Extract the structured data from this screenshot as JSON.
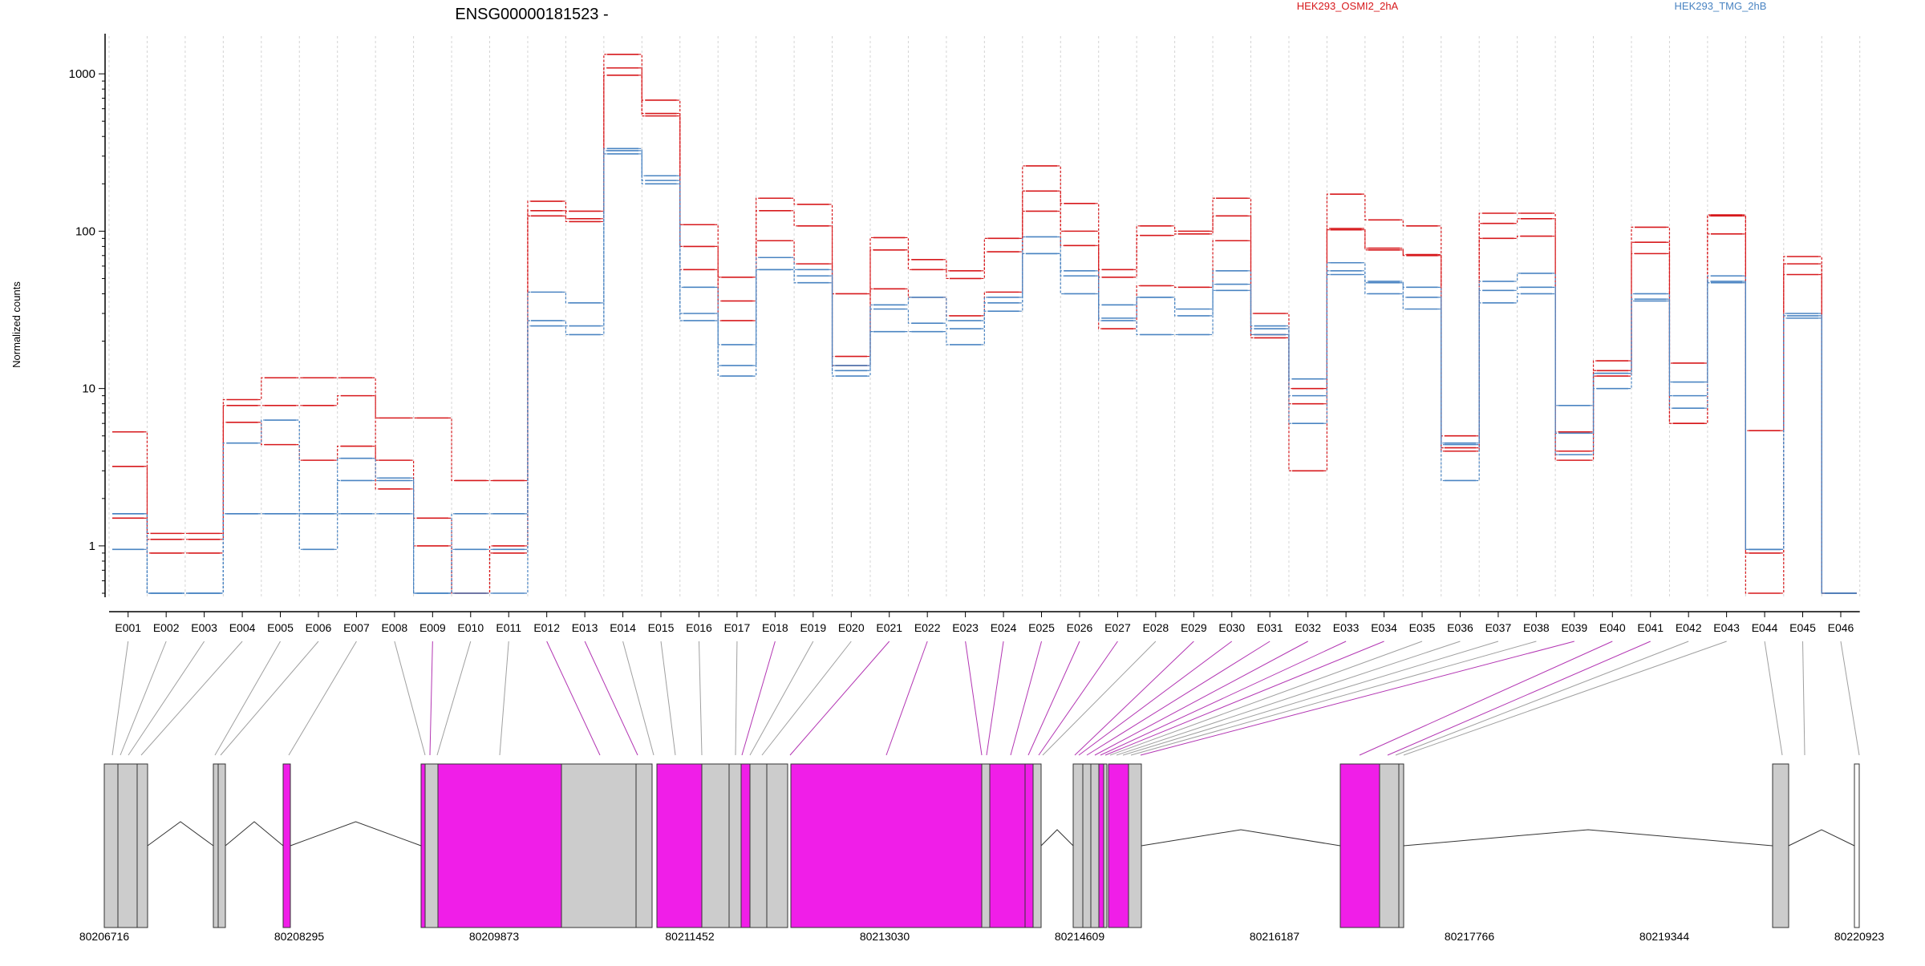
{
  "chart_data": {
    "type": "line",
    "title": "ENSG00000181523 -",
    "ylabel": "Normalized counts",
    "y_scale": "log",
    "ylim": [
      0.5,
      1800
    ],
    "y_ticks": [
      1,
      10,
      100,
      1000
    ],
    "y_tick_labels": [
      "1",
      "10",
      "100",
      "1000"
    ],
    "grid": "vertical dashed lines at exon boundaries",
    "legend_placement": "top-right",
    "categories": [
      "E001",
      "E002",
      "E003",
      "E004",
      "E005",
      "E006",
      "E007",
      "E008",
      "E009",
      "E010",
      "E011",
      "E012",
      "E013",
      "E014",
      "E015",
      "E016",
      "E017",
      "E018",
      "E019",
      "E020",
      "E021",
      "E022",
      "E023",
      "E024",
      "E025",
      "E026",
      "E027",
      "E028",
      "E029",
      "E030",
      "E031",
      "E032",
      "E033",
      "E034",
      "E035",
      "E036",
      "E037",
      "E038",
      "E039",
      "E040",
      "E041",
      "E042",
      "E043",
      "E044",
      "E045",
      "E046"
    ],
    "series": [
      {
        "legend": "HEK293_OSMI2_2hA",
        "color": "#d7191c",
        "values": [
          5.3,
          1.2,
          1.2,
          8.5,
          11.7,
          11.7,
          11.7,
          6.5,
          6.5,
          2.6,
          2.6,
          155,
          134,
          1330,
          680,
          110,
          51,
          162,
          148,
          40,
          91,
          66,
          56,
          90,
          260,
          150,
          57,
          108,
          100,
          162,
          30,
          10,
          172,
          118,
          108,
          5.0,
          130,
          130,
          5.3,
          15,
          106,
          14.5,
          127,
          5.4,
          69,
          0.5
        ]
      },
      {
        "legend": "",
        "color": "#d7191c",
        "values": [
          3.2,
          1.1,
          1.1,
          7.8,
          7.8,
          7.8,
          9.0,
          3.5,
          1.5,
          0.5,
          1.0,
          135,
          120,
          1090,
          560,
          80,
          36,
          135,
          108,
          16,
          76,
          57,
          50,
          74,
          180,
          100,
          51,
          94,
          96,
          125,
          22,
          8.0,
          104,
          78,
          71,
          4.2,
          112,
          120,
          4.0,
          13,
          85,
          6.0,
          125,
          0.9,
          62,
          0.5
        ]
      },
      {
        "legend": "",
        "color": "#d7191c",
        "values": [
          1.5,
          0.9,
          0.9,
          6.1,
          4.4,
          3.5,
          4.3,
          2.3,
          1.0,
          0.5,
          0.9,
          125,
          115,
          980,
          540,
          57,
          27,
          87,
          62,
          14,
          43,
          38,
          29,
          41,
          134,
          81,
          24,
          45,
          44,
          87,
          21,
          3.0,
          102,
          76,
          70,
          4.0,
          90,
          93,
          3.5,
          12,
          72,
          6.0,
          96,
          0.5,
          53,
          0.5
        ]
      },
      {
        "legend": "HEK293_TMG_2hB",
        "color": "#4a84c2",
        "values": [
          1.6,
          0.5,
          0.5,
          1.6,
          1.6,
          1.6,
          1.6,
          1.6,
          0.5,
          0.5,
          0.5,
          41,
          35,
          335,
          225,
          44,
          19,
          68,
          57,
          14,
          34,
          38,
          27,
          38,
          92,
          56,
          34,
          38,
          32,
          56,
          24,
          11.5,
          63,
          48,
          44,
          4.5,
          48,
          54,
          7.8,
          12.5,
          40,
          11,
          52,
          0.95,
          30,
          0.5
        ]
      },
      {
        "legend": "",
        "color": "#4a84c2",
        "values": [
          1.6,
          0.5,
          0.5,
          4.5,
          6.3,
          1.6,
          3.6,
          2.7,
          0.5,
          1.6,
          1.6,
          27,
          25,
          325,
          210,
          30,
          14,
          57,
          52,
          13,
          32,
          26,
          24,
          35,
          72,
          52,
          28,
          38,
          29,
          46,
          25,
          9,
          56,
          47,
          38,
          4.4,
          42,
          44,
          5.2,
          12.5,
          37,
          9,
          48,
          0.95,
          29,
          0.5
        ]
      },
      {
        "legend": "",
        "color": "#4a84c2",
        "values": [
          0.95,
          0.5,
          0.5,
          1.6,
          1.6,
          0.95,
          2.6,
          2.6,
          0.5,
          0.95,
          0.95,
          25,
          22,
          310,
          200,
          27,
          12,
          57,
          47,
          12,
          23,
          23,
          19,
          31,
          72,
          40,
          27,
          22,
          22,
          42,
          22,
          6,
          53,
          40,
          32,
          2.6,
          35,
          40,
          3.8,
          10,
          36,
          7.5,
          47,
          0.95,
          28,
          0.5
        ]
      }
    ],
    "gene_model": {
      "genomic_ticks": [
        "80206716",
        "80208295",
        "80209873",
        "80211452",
        "80213030",
        "80214609",
        "80216187",
        "80217766",
        "80219344",
        "80220923"
      ],
      "exon_fill": "#cccccc",
      "highlight_fill": "#f01ee8"
    }
  }
}
